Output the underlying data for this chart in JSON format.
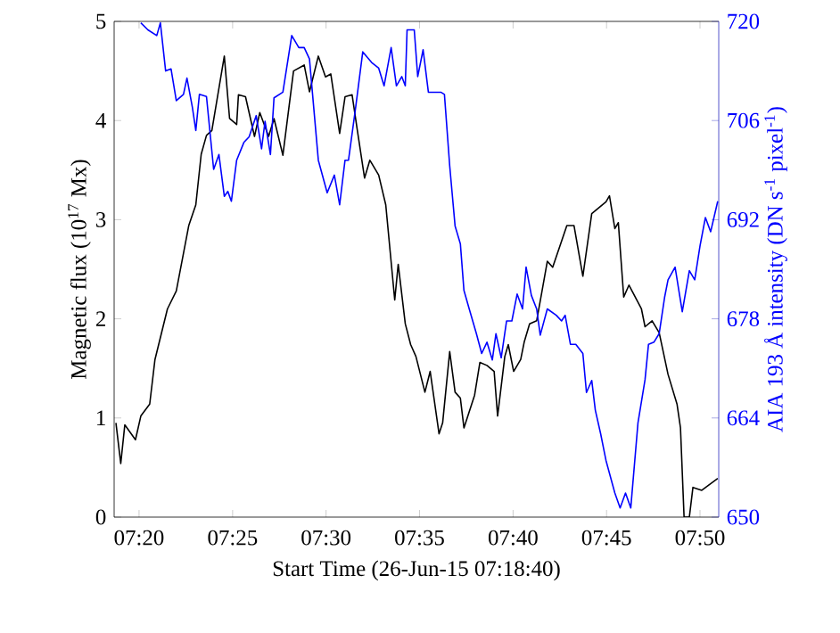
{
  "chart_data": {
    "type": "line",
    "xlabel": "Start Time (26-Jun-15 07:18:40)",
    "ylabel": "Magnetic flux (10$^{17}$ Mx)",
    "y2label": "AIA 193 Å intensity (DN s$^{-1}$ pixel$^{-1}$)",
    "xlim": [
      7.3111,
      7.85
    ],
    "ylim": [
      0,
      5
    ],
    "y2lim": [
      650,
      720
    ],
    "xticks": [
      {
        "value": 7.3333,
        "label": "07:20"
      },
      {
        "value": 7.4167,
        "label": "07:25"
      },
      {
        "value": 7.5,
        "label": "07:30"
      },
      {
        "value": 7.5833,
        "label": "07:35"
      },
      {
        "value": 7.6667,
        "label": "07:40"
      },
      {
        "value": 7.75,
        "label": "07:45"
      },
      {
        "value": 7.8333,
        "label": "07:50"
      }
    ],
    "yticks": [
      0,
      1,
      2,
      3,
      4,
      5
    ],
    "y2ticks": [
      650,
      664,
      678,
      692,
      706,
      720
    ],
    "grid": false,
    "series": [
      {
        "color": "#000000",
        "x": [
          7.3127,
          7.317,
          7.3206,
          7.3301,
          7.3349,
          7.3428,
          7.3475,
          7.3586,
          7.3665,
          7.3776,
          7.3839,
          7.3887,
          7.3934,
          7.3982,
          7.4093,
          7.414,
          7.4203,
          7.4219,
          7.4282,
          7.4362,
          7.4409,
          7.4488,
          7.4536,
          7.4615,
          7.471,
          7.4805,
          7.4852,
          7.4931,
          7.4995,
          7.5042,
          7.5121,
          7.5169,
          7.5232,
          7.5279,
          7.5343,
          7.539,
          7.5469,
          7.5532,
          7.5612,
          7.5643,
          7.5706,
          7.5754,
          7.5801,
          7.5881,
          7.5928,
          7.6007,
          7.6039,
          7.6102,
          7.615,
          7.6197,
          7.6229,
          7.6324,
          7.6371,
          7.6434,
          7.6498,
          7.6529,
          7.6593,
          7.6624,
          7.6672,
          7.6735,
          7.6767,
          7.6814,
          7.6877,
          7.6925,
          7.6972,
          7.702,
          7.7146,
          7.721,
          7.7289,
          7.7368,
          7.7495,
          7.7526,
          7.7574,
          7.7605,
          7.7653,
          7.77,
          7.7811,
          7.7843,
          7.7906,
          7.7969,
          7.8048,
          7.8128,
          7.8159,
          7.8191,
          7.8238,
          7.827,
          7.8349,
          7.8491
        ],
        "values": [
          0.95,
          0.54,
          0.93,
          0.78,
          1.02,
          1.14,
          1.59,
          2.1,
          2.28,
          2.94,
          3.15,
          3.66,
          3.85,
          3.9,
          4.65,
          4.02,
          3.96,
          4.26,
          4.24,
          3.84,
          4.08,
          3.84,
          4.02,
          3.65,
          4.5,
          4.56,
          4.29,
          4.65,
          4.44,
          4.47,
          3.87,
          4.24,
          4.26,
          3.9,
          3.42,
          3.6,
          3.45,
          3.15,
          2.19,
          2.55,
          1.95,
          1.74,
          1.62,
          1.26,
          1.47,
          0.84,
          0.95,
          1.67,
          1.26,
          1.2,
          0.9,
          1.23,
          1.56,
          1.53,
          1.47,
          1.02,
          1.62,
          1.74,
          1.47,
          1.59,
          1.77,
          1.95,
          1.98,
          2.28,
          2.58,
          2.52,
          2.94,
          2.94,
          2.43,
          3.06,
          3.18,
          3.24,
          2.91,
          2.97,
          2.22,
          2.34,
          2.1,
          1.92,
          1.98,
          1.86,
          1.44,
          1.14,
          0.9,
          0,
          0,
          0.3,
          0.27,
          0.39
        ]
      },
      {
        "color": "#0000ff",
        "axis": "y2",
        "x": [
          7.3349,
          7.3412,
          7.3491,
          7.3523,
          7.357,
          7.3618,
          7.3665,
          7.3729,
          7.376,
          7.3808,
          7.3839,
          7.3871,
          7.3934,
          7.3998,
          7.4045,
          7.4093,
          7.4124,
          7.4156,
          7.4203,
          7.4267,
          7.4314,
          7.4377,
          7.4425,
          7.4456,
          7.4504,
          7.4536,
          7.4615,
          7.4694,
          7.4757,
          7.4805,
          7.4852,
          7.4931,
          7.501,
          7.5074,
          7.5121,
          7.5169,
          7.52,
          7.5264,
          7.5327,
          7.5406,
          7.5469,
          7.5517,
          7.558,
          7.5627,
          7.5675,
          7.5706,
          7.5722,
          7.5786,
          7.5817,
          7.5865,
          7.5912,
          7.6023,
          7.6055,
          7.6102,
          7.615,
          7.6197,
          7.6229,
          7.6276,
          7.634,
          7.6387,
          7.6434,
          7.6482,
          7.6514,
          7.6561,
          7.6609,
          7.6656,
          7.6703,
          7.6751,
          7.6783,
          7.683,
          7.6877,
          7.6909,
          7.6972,
          7.7052,
          7.7099,
          7.7131,
          7.7178,
          7.7226,
          7.7289,
          7.7321,
          7.7368,
          7.74,
          7.7447,
          7.7495,
          7.7574,
          7.7621,
          7.7669,
          7.7716,
          7.778,
          7.7843,
          7.7874,
          7.7922,
          7.7969,
          7.8017,
          7.8048,
          7.8111,
          7.8175,
          7.8238,
          7.8286,
          7.8333,
          7.8381,
          7.8428,
          7.8491
        ],
        "values": [
          719.8,
          718.8,
          718,
          719.8,
          713,
          713.3,
          708.8,
          709.7,
          712,
          707.9,
          704.6,
          709.7,
          709.4,
          699.1,
          701.2,
          695.3,
          696,
          694.6,
          700.4,
          702.9,
          703.7,
          706.7,
          702,
          705.9,
          701.2,
          709.2,
          710,
          718,
          716.3,
          716.3,
          714.7,
          700.4,
          695.8,
          698.3,
          694.1,
          700.4,
          700.4,
          707.9,
          715.7,
          714.2,
          713.4,
          710.9,
          716.3,
          710.9,
          712.2,
          710.9,
          718.8,
          718.8,
          712.2,
          716,
          710,
          710,
          709.7,
          699.6,
          691.1,
          688.6,
          682,
          679.4,
          675.9,
          673.1,
          674.7,
          672.2,
          675.9,
          672.5,
          677.7,
          677.7,
          681.5,
          679.4,
          685.3,
          681.3,
          679.4,
          675.7,
          679.4,
          678.5,
          677.7,
          678.5,
          674.4,
          674.4,
          673.1,
          667.6,
          669.3,
          665.1,
          661.8,
          658,
          653.4,
          651.3,
          653.4,
          651.3,
          663.3,
          669.4,
          674.4,
          674.7,
          675.9,
          681,
          683.5,
          685.3,
          679,
          684.8,
          683.5,
          688.3,
          692.3,
          690.3,
          694.6
        ]
      }
    ]
  }
}
